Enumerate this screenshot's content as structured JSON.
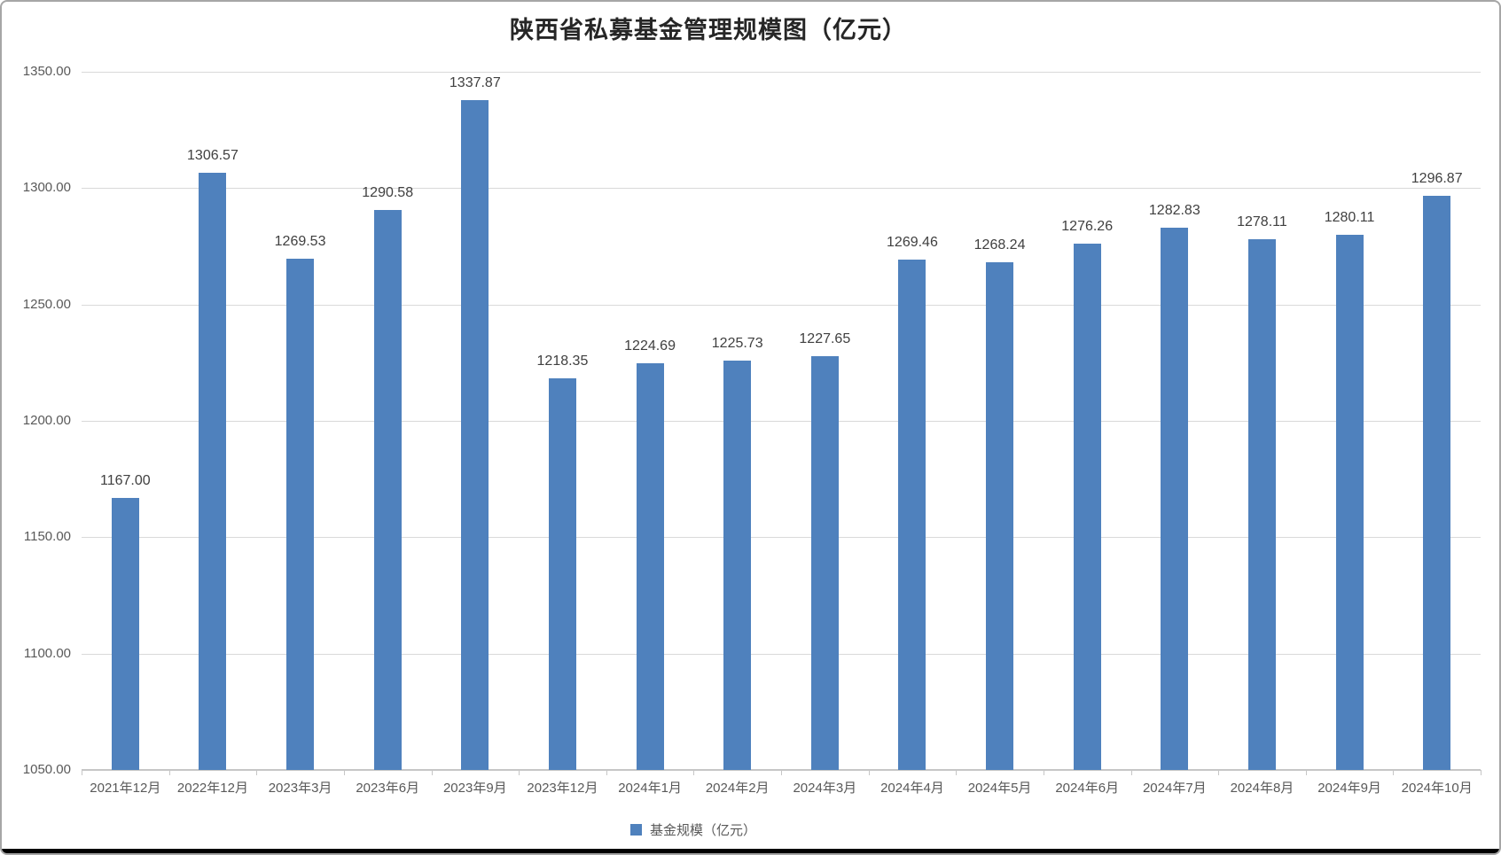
{
  "chart_data": {
    "type": "bar",
    "title": "陕西省私募基金管理规模图（亿元）",
    "legend": "基金规模（亿元）",
    "legend_position": "bottom",
    "bar_color": "#4F81BD",
    "grid": true,
    "categories": [
      "2021年12月",
      "2022年12月",
      "2023年3月",
      "2023年6月",
      "2023年9月",
      "2023年12月",
      "2024年1月",
      "2024年2月",
      "2024年3月",
      "2024年4月",
      "2024年5月",
      "2024年6月",
      "2024年7月",
      "2024年8月",
      "2024年9月",
      "2024年10月"
    ],
    "values": [
      1167.0,
      1306.57,
      1269.53,
      1290.58,
      1337.87,
      1218.35,
      1224.69,
      1225.73,
      1227.65,
      1269.46,
      1268.24,
      1276.26,
      1282.83,
      1278.11,
      1280.11,
      1296.87
    ],
    "value_labels": [
      "1167.00",
      "1306.57",
      "1269.53",
      "1290.58",
      "1337.87",
      "1218.35",
      "1224.69",
      "1225.73",
      "1227.65",
      "1269.46",
      "1268.24",
      "1276.26",
      "1282.83",
      "1278.11",
      "1280.11",
      "1296.87"
    ],
    "xlabel": "",
    "ylabel": "",
    "ylim": [
      1050,
      1350
    ],
    "y_step": 50,
    "y_tick_labels": [
      "1350.00",
      "1300.00",
      "1250.00",
      "1200.00",
      "1150.00",
      "1100.00",
      "1050.00"
    ]
  }
}
